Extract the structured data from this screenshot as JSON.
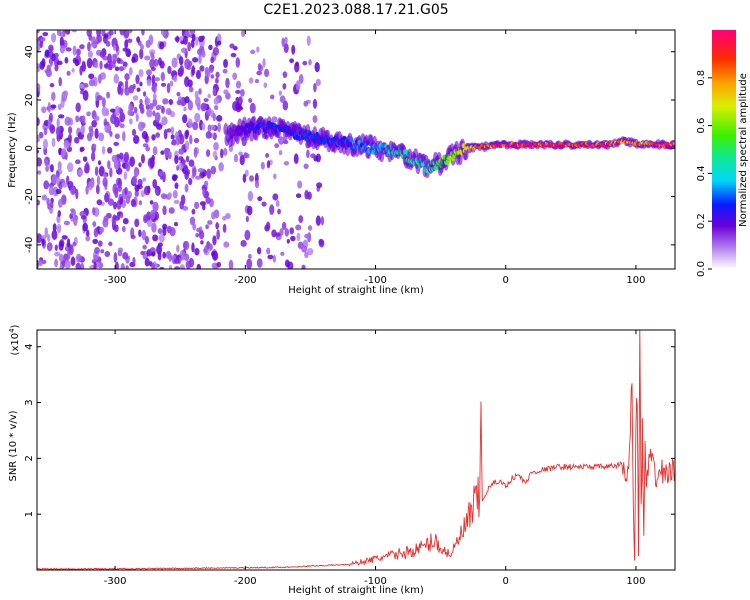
{
  "title": "C2E1.2023.088.17.21.G05",
  "chart_data": [
    {
      "type": "heatmap",
      "xlabel": "Height of straight line (km)",
      "ylabel": "Frequency (Hz)",
      "xlim": [
        -360,
        130
      ],
      "ylim": [
        -50,
        49
      ],
      "xticks": [
        "-300",
        "-200",
        "-100",
        "0",
        "100"
      ],
      "xtick_values": [
        -300,
        -200,
        -100,
        0,
        100
      ],
      "yticks": [
        "40",
        "20",
        "0",
        "-20",
        "-40"
      ],
      "ytick_values": [
        40,
        20,
        0,
        -20,
        -40
      ],
      "colorbar": {
        "label": "Normalized spectral amplitude",
        "range": [
          0,
          1
        ],
        "ticks": [
          "0.0",
          "0.2",
          "0.4",
          "0.6",
          "0.8"
        ],
        "tick_values": [
          0.0,
          0.2,
          0.4,
          0.6,
          0.8
        ]
      },
      "ridge": {
        "x": [
          -215,
          -200,
          -180,
          -160,
          -140,
          -120,
          -100,
          -80,
          -60,
          -50,
          -40,
          -30,
          -20,
          -10,
          0,
          20,
          40,
          60,
          80,
          90,
          100,
          120,
          130
        ],
        "y": [
          5,
          8,
          9,
          6,
          4,
          2,
          0,
          -2,
          -8,
          -6,
          -3,
          0,
          0.5,
          1,
          1.5,
          1.5,
          1.5,
          1.5,
          1.5,
          3,
          2,
          1.5,
          1.5
        ],
        "amplitude": [
          0.15,
          0.25,
          0.3,
          0.3,
          0.3,
          0.3,
          0.4,
          0.5,
          0.5,
          0.6,
          0.7,
          0.8,
          0.9,
          0.95,
          1,
          1,
          1,
          1,
          1,
          0.9,
          0.9,
          1,
          1
        ]
      }
    },
    {
      "type": "line",
      "xlabel": "Height of straight line (km)",
      "ylabel": "SNR (10 * v/v)",
      "ymultiplier": "(x10",
      "ymultiplier_exp": "4",
      "xlim": [
        -360,
        130
      ],
      "ylim": [
        0,
        4.3
      ],
      "xticks": [
        "-300",
        "-200",
        "-100",
        "0",
        "100"
      ],
      "xtick_values": [
        -300,
        -200,
        -100,
        0,
        100
      ],
      "yticks": [
        "1",
        "2",
        "3",
        "4"
      ],
      "ytick_values": [
        1,
        2,
        3,
        4
      ],
      "color": "#e8302e",
      "series": [
        {
          "x": [
            -360,
            -300,
            -250,
            -200,
            -170,
            -140,
            -120,
            -110,
            -100,
            -90,
            -80,
            -70,
            -60,
            -55,
            -50,
            -45,
            -40,
            -35,
            -30,
            -25,
            -20,
            -19,
            -18,
            -15,
            -10,
            -5,
            0,
            5,
            10,
            15,
            20,
            30,
            40,
            50,
            60,
            70,
            80,
            90,
            93,
            95,
            97,
            98,
            99,
            100,
            101,
            102,
            103,
            104,
            105,
            106,
            107,
            108,
            110,
            115,
            120,
            125,
            130
          ],
          "y": [
            0.02,
            0.02,
            0.03,
            0.04,
            0.05,
            0.08,
            0.1,
            0.15,
            0.2,
            0.25,
            0.3,
            0.35,
            0.45,
            0.55,
            0.4,
            0.3,
            0.35,
            0.6,
            0.8,
            1.1,
            1.3,
            3.0,
            1.2,
            1.4,
            1.55,
            1.6,
            1.5,
            1.65,
            1.7,
            1.55,
            1.75,
            1.8,
            1.85,
            1.85,
            1.85,
            1.85,
            1.85,
            1.9,
            1.5,
            2.3,
            3.4,
            1.0,
            0.2,
            2.5,
            3.2,
            0.4,
            4.25,
            1.0,
            2.5,
            0.5,
            2.3,
            1.4,
            2.0,
            1.7,
            1.75,
            1.75,
            1.75
          ]
        }
      ]
    }
  ]
}
